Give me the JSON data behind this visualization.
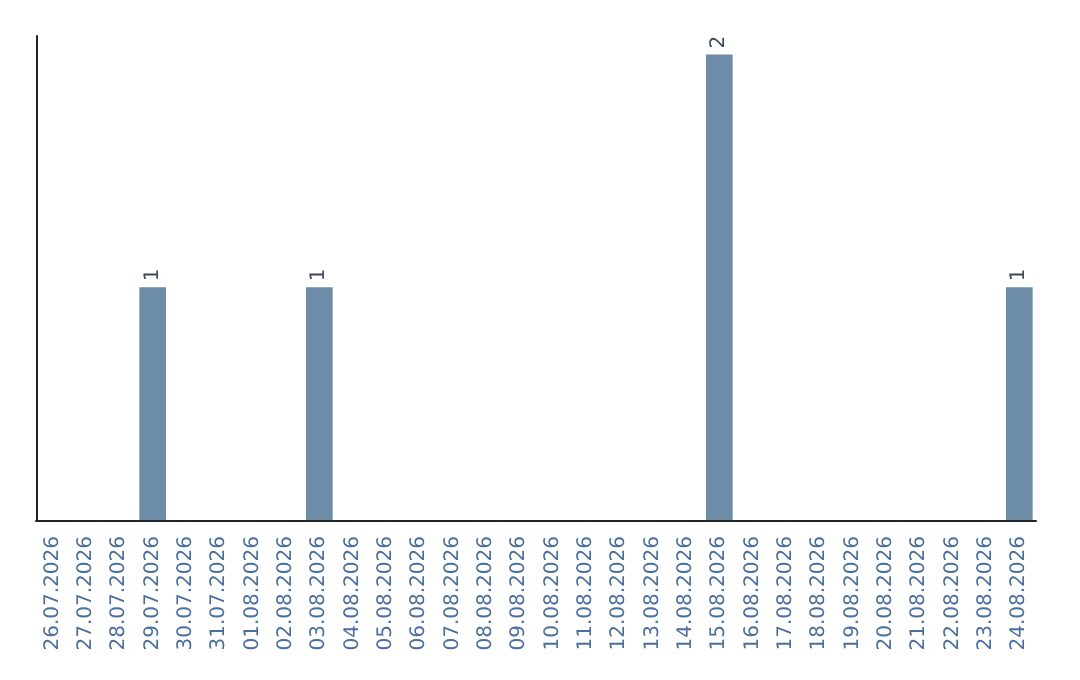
{
  "chart_data": {
    "type": "bar",
    "categories": [
      "26.07.2026",
      "27.07.2026",
      "28.07.2026",
      "29.07.2026",
      "30.07.2026",
      "31.07.2026",
      "01.08.2026",
      "02.08.2026",
      "03.08.2026",
      "04.08.2026",
      "05.08.2026",
      "06.08.2026",
      "07.08.2026",
      "08.08.2026",
      "09.08.2026",
      "10.08.2026",
      "11.08.2026",
      "12.08.2026",
      "13.08.2026",
      "14.08.2026",
      "15.08.2026",
      "16.08.2026",
      "17.08.2026",
      "18.08.2026",
      "19.08.2026",
      "20.08.2026",
      "21.08.2026",
      "22.08.2026",
      "23.08.2026",
      "24.08.2026"
    ],
    "values": [
      0,
      0,
      0,
      1,
      0,
      0,
      0,
      0,
      1,
      0,
      0,
      0,
      0,
      0,
      0,
      0,
      0,
      0,
      0,
      0,
      2,
      0,
      0,
      0,
      0,
      0,
      0,
      0,
      0,
      1
    ],
    "value_labels": [
      null,
      null,
      null,
      "1",
      null,
      null,
      null,
      null,
      "1",
      null,
      null,
      null,
      null,
      null,
      null,
      null,
      null,
      null,
      null,
      null,
      "2",
      null,
      null,
      null,
      null,
      null,
      null,
      null,
      null,
      "1"
    ],
    "color": "#6d8ca8",
    "ylim": [
      0,
      2.08
    ],
    "tick_labels": "x",
    "grid": false
  }
}
